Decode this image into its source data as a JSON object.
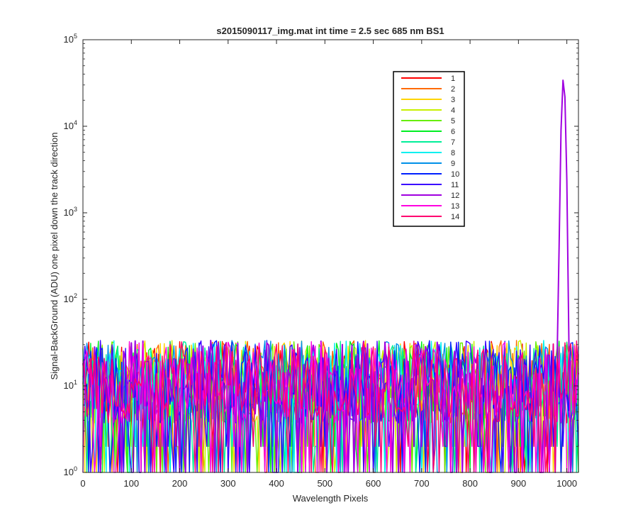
{
  "chart_data": {
    "type": "line",
    "title": "s2015090117_img.mat int time = 2.5 sec  685 nm BS1",
    "xlabel": "Wavelength Pixels",
    "ylabel": "Signal-BackGround (ADU) one pixel down the track direction",
    "xlim": [
      0,
      1024
    ],
    "ylim": [
      1,
      100000
    ],
    "yscale": "log",
    "grid": false,
    "legend_position": "top-right",
    "x_ticks": [
      0,
      100,
      200,
      300,
      400,
      500,
      600,
      700,
      800,
      900,
      1000
    ],
    "y_ticks": [
      {
        "base": "10",
        "exp": "0",
        "value": 1
      },
      {
        "base": "10",
        "exp": "1",
        "value": 10
      },
      {
        "base": "10",
        "exp": "2",
        "value": 100
      },
      {
        "base": "10",
        "exp": "3",
        "value": 1000
      },
      {
        "base": "10",
        "exp": "4",
        "value": 10000
      },
      {
        "base": "10",
        "exp": "5",
        "value": 100000
      }
    ],
    "noise_floor": {
      "typical_min": 1,
      "typical_max": 50,
      "typical_median": 10
    },
    "peak": {
      "x": 993,
      "y": 36000,
      "series": "12"
    },
    "series": [
      {
        "name": "1",
        "color": "#ff0000"
      },
      {
        "name": "2",
        "color": "#ff6a00"
      },
      {
        "name": "3",
        "color": "#ffd400"
      },
      {
        "name": "4",
        "color": "#c8f000"
      },
      {
        "name": "5",
        "color": "#66ee00"
      },
      {
        "name": "6",
        "color": "#00ee22"
      },
      {
        "name": "7",
        "color": "#00ee99"
      },
      {
        "name": "8",
        "color": "#00f0f0"
      },
      {
        "name": "9",
        "color": "#0090e8"
      },
      {
        "name": "10",
        "color": "#0020ff"
      },
      {
        "name": "11",
        "color": "#3a00ff"
      },
      {
        "name": "12",
        "color": "#a000e0"
      },
      {
        "name": "13",
        "color": "#ff00e0"
      },
      {
        "name": "14",
        "color": "#ff0070"
      }
    ]
  }
}
